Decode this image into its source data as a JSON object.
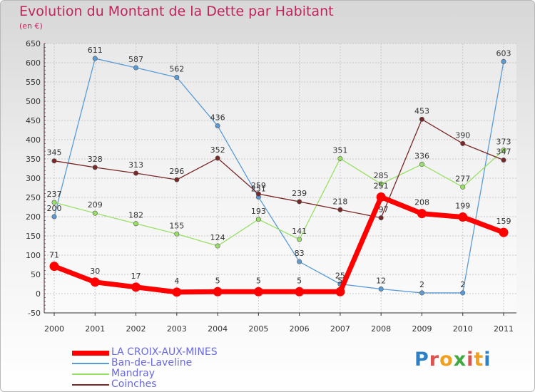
{
  "header": {
    "title": "Evolution du Montant de la Dette par Habitant",
    "subtitle": "(en €)"
  },
  "brand": {
    "text": "Proxiti",
    "colors": [
      "#2f7fc4",
      "#d9534f",
      "#f0a020",
      "#3fa83f",
      "#d9534f",
      "#f0a020",
      "#2f7fc4"
    ]
  },
  "chart_data": {
    "type": "line",
    "title": "Evolution du Montant de la Dette par Habitant",
    "ylabel": "(en €)",
    "xlabel": "",
    "ylim": [
      -50,
      650
    ],
    "yticks": [
      -50,
      0,
      50,
      100,
      150,
      200,
      250,
      300,
      350,
      400,
      450,
      500,
      550,
      600,
      650
    ],
    "categories": [
      "2000",
      "2001",
      "2002",
      "2003",
      "2004",
      "2005",
      "2006",
      "2007",
      "2008",
      "2009",
      "2010",
      "2011"
    ],
    "grid": true,
    "legend_position": "bottom-left",
    "series": [
      {
        "name": "LA CROIX-AUX-MINES",
        "color": "#ff0000",
        "values": [
          71,
          30,
          17,
          4,
          5,
          5,
          5,
          5,
          251,
          208,
          199,
          159
        ],
        "emphasis": true
      },
      {
        "name": "Ban-de-Laveline",
        "color": "#5b9bd5",
        "values": [
          200,
          611,
          587,
          562,
          436,
          251,
          83,
          25,
          12,
          2,
          2,
          603
        ]
      },
      {
        "name": "Mandray",
        "color": "#99e066",
        "values": [
          237,
          209,
          182,
          155,
          124,
          193,
          141,
          351,
          285,
          336,
          277,
          373
        ]
      },
      {
        "name": "Coinches",
        "color": "#7a2727",
        "values": [
          345,
          328,
          313,
          296,
          352,
          259,
          239,
          218,
          197,
          453,
          390,
          347
        ]
      }
    ]
  }
}
